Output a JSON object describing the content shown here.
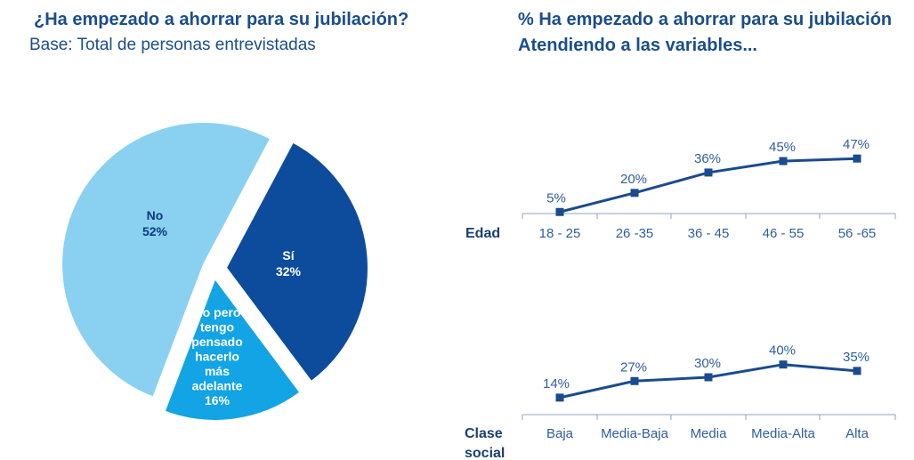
{
  "left": {
    "title": "¿Ha empezado a ahorrar para su jubilación?",
    "subtitle": "Base: Total de personas entrevistadas"
  },
  "right": {
    "title": "% Ha empezado a ahorrar para su jubilación",
    "subtitle": "Atendiendo a las variables..."
  },
  "colors": {
    "no": "#8ad1f1",
    "si": "#0d4c9c",
    "no_pero": "#12a4e4",
    "line": "#1a4b8f",
    "axis": "#8fa6c4"
  },
  "chart_data": [
    {
      "type": "pie",
      "title": "¿Ha empezado a ahorrar para su jubilación?",
      "slices": [
        {
          "key": "si",
          "label": "Sí",
          "value": 32,
          "value_label": "32%"
        },
        {
          "key": "no_pero",
          "label": "No pero tengo pensado hacerlo más adelante",
          "label_lines": [
            "No pero",
            "tengo",
            "pensado",
            "hacerlo",
            "más",
            "adelante"
          ],
          "value": 16,
          "value_label": "16%"
        },
        {
          "key": "no",
          "label": "No",
          "value": 52,
          "value_label": "52%"
        }
      ]
    },
    {
      "type": "line",
      "row_label": "Edad",
      "categories": [
        "18 - 25",
        "26 -35",
        "36 - 45",
        "46 - 55",
        "56 -65"
      ],
      "values": [
        5,
        20,
        36,
        45,
        47
      ],
      "value_labels": [
        "5%",
        "20%",
        "36%",
        "45%",
        "47%"
      ],
      "ylim": [
        0,
        50
      ]
    },
    {
      "type": "line",
      "row_label": "Clase social",
      "row_label_lines": [
        "Clase",
        "social"
      ],
      "categories": [
        "Baja",
        "Media-Baja",
        "Media",
        "Media-Alta",
        "Alta"
      ],
      "values": [
        14,
        27,
        30,
        40,
        35
      ],
      "value_labels": [
        "14%",
        "27%",
        "30%",
        "40%",
        "35%"
      ],
      "ylim": [
        0,
        50
      ]
    }
  ]
}
